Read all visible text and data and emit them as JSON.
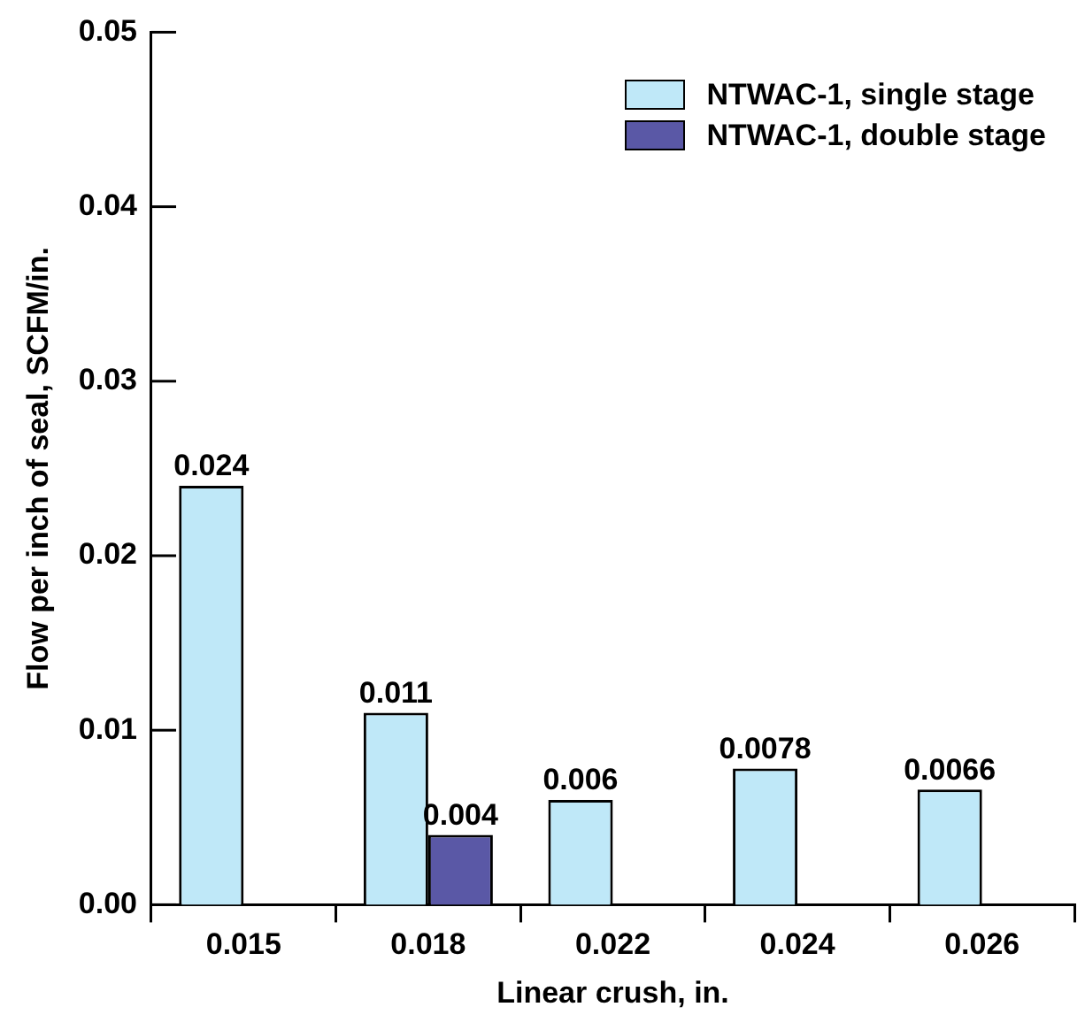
{
  "chart_data": {
    "type": "bar",
    "xlabel": "Linear crush, in.",
    "ylabel": "Flow per inch of seal, SCFM/in.",
    "categories": [
      "0.015",
      "0.018",
      "0.022",
      "0.024",
      "0.026"
    ],
    "series": [
      {
        "name": "NTWAC-1, single stage",
        "color": "#bfe8f8",
        "values": [
          0.024,
          0.011,
          0.006,
          0.0078,
          0.0066
        ]
      },
      {
        "name": "NTWAC-1, double stage",
        "color": "#5a58a6",
        "values": [
          null,
          0.004,
          null,
          null,
          null
        ]
      }
    ],
    "ylim": [
      0,
      0.05
    ],
    "yticks": [
      {
        "value": 0,
        "label": "0.00"
      },
      {
        "value": 0.01,
        "label": "0.01"
      },
      {
        "value": 0.02,
        "label": "0.02"
      },
      {
        "value": 0.03,
        "label": "0.03"
      },
      {
        "value": 0.04,
        "label": "0.04"
      },
      {
        "value": 0.05,
        "label": "0.05"
      }
    ],
    "grid": false,
    "legend": "top right",
    "data_labels": true
  }
}
